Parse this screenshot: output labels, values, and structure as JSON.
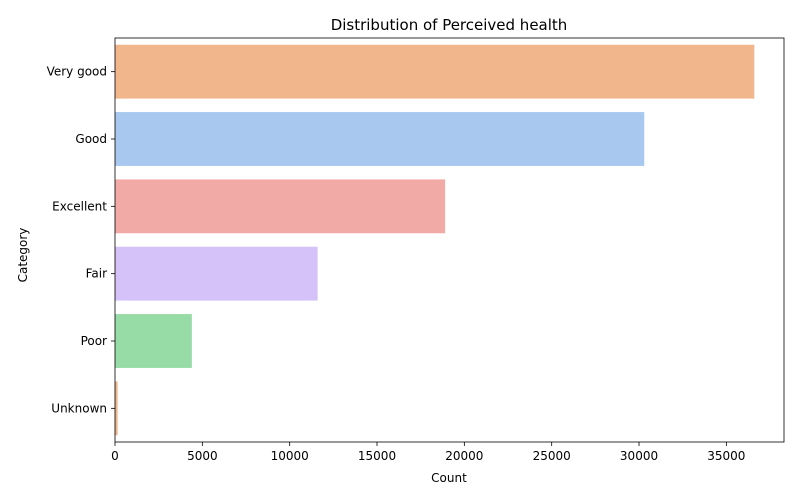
{
  "chart_data": {
    "type": "bar",
    "orientation": "horizontal",
    "title": "Distribution of Perceived health",
    "xlabel": "Count",
    "ylabel": "Category",
    "categories": [
      "Very good",
      "Good",
      "Excellent",
      "Fair",
      "Poor",
      "Unknown"
    ],
    "values": [
      36600,
      30300,
      18900,
      11600,
      4400,
      150
    ],
    "colors": [
      "#f2b68d",
      "#a9c8ef",
      "#f2aaa7",
      "#d5c2f8",
      "#97dba7",
      "#f2b68d"
    ],
    "xlim": [
      0,
      38300
    ],
    "xticks": [
      0,
      5000,
      10000,
      15000,
      20000,
      25000,
      30000,
      35000
    ],
    "xtick_labels": [
      "0",
      "5000",
      "10000",
      "15000",
      "20000",
      "25000",
      "30000",
      "35000"
    ],
    "grid": false,
    "legend": "none"
  }
}
